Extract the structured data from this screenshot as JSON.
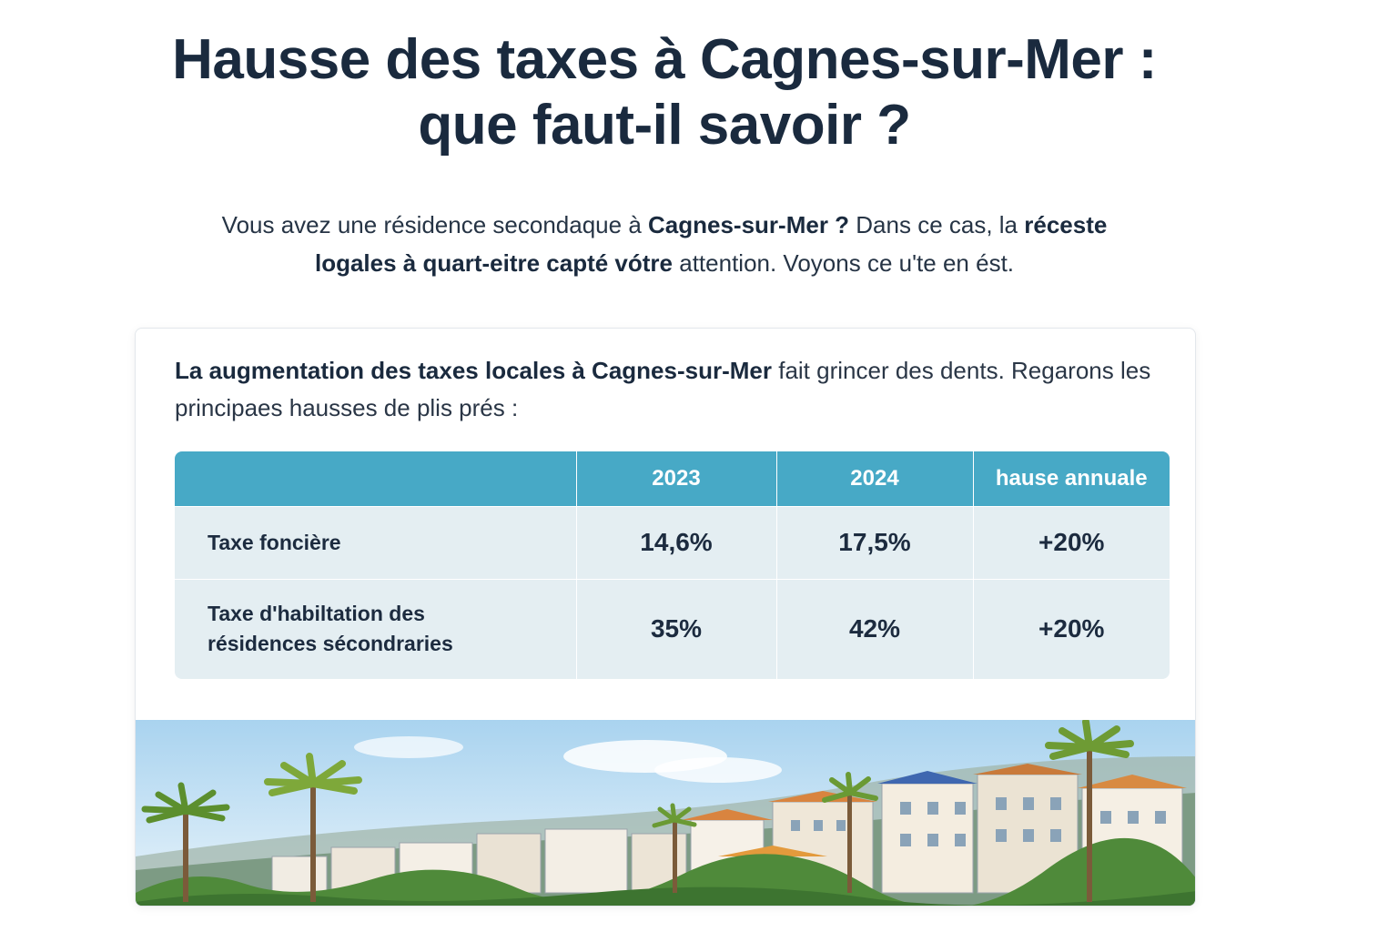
{
  "article": {
    "title_line1": "Hausse des taxes à Cagnes-sur-Mer :",
    "title_line2": "que faut-il savoir ?",
    "intro": {
      "part1": "Vous avez une résidence secondaque à ",
      "bold1": "Cagnes-sur-Mer ?",
      "part2": " Dans ce cas, la ",
      "bold2": "réceste",
      "bold3": "logales à quart-eitre capté vótre",
      "part3": " attention. Voyons ce u'te en ést."
    }
  },
  "card": {
    "text": {
      "bold": "La augmentation des taxes locales à Cagnes-sur-Mer",
      "rest": " fait grincer des dents. Regarons les principaes hausses de plis prés :"
    },
    "table": {
      "headers": [
        "",
        "2023",
        "2024",
        "hause annuale"
      ],
      "rows": [
        {
          "label": "Taxe foncière",
          "v2023": "14,6%",
          "v2024": "17,5%",
          "change": "+20%"
        },
        {
          "label_line1": "Taxe d'habiltation des",
          "label_line2": "résidences sécondraries",
          "v2023": "35%",
          "v2024": "42%",
          "change": "+20%"
        }
      ]
    },
    "image": {
      "subject": "coastal-town-panorama"
    }
  }
}
